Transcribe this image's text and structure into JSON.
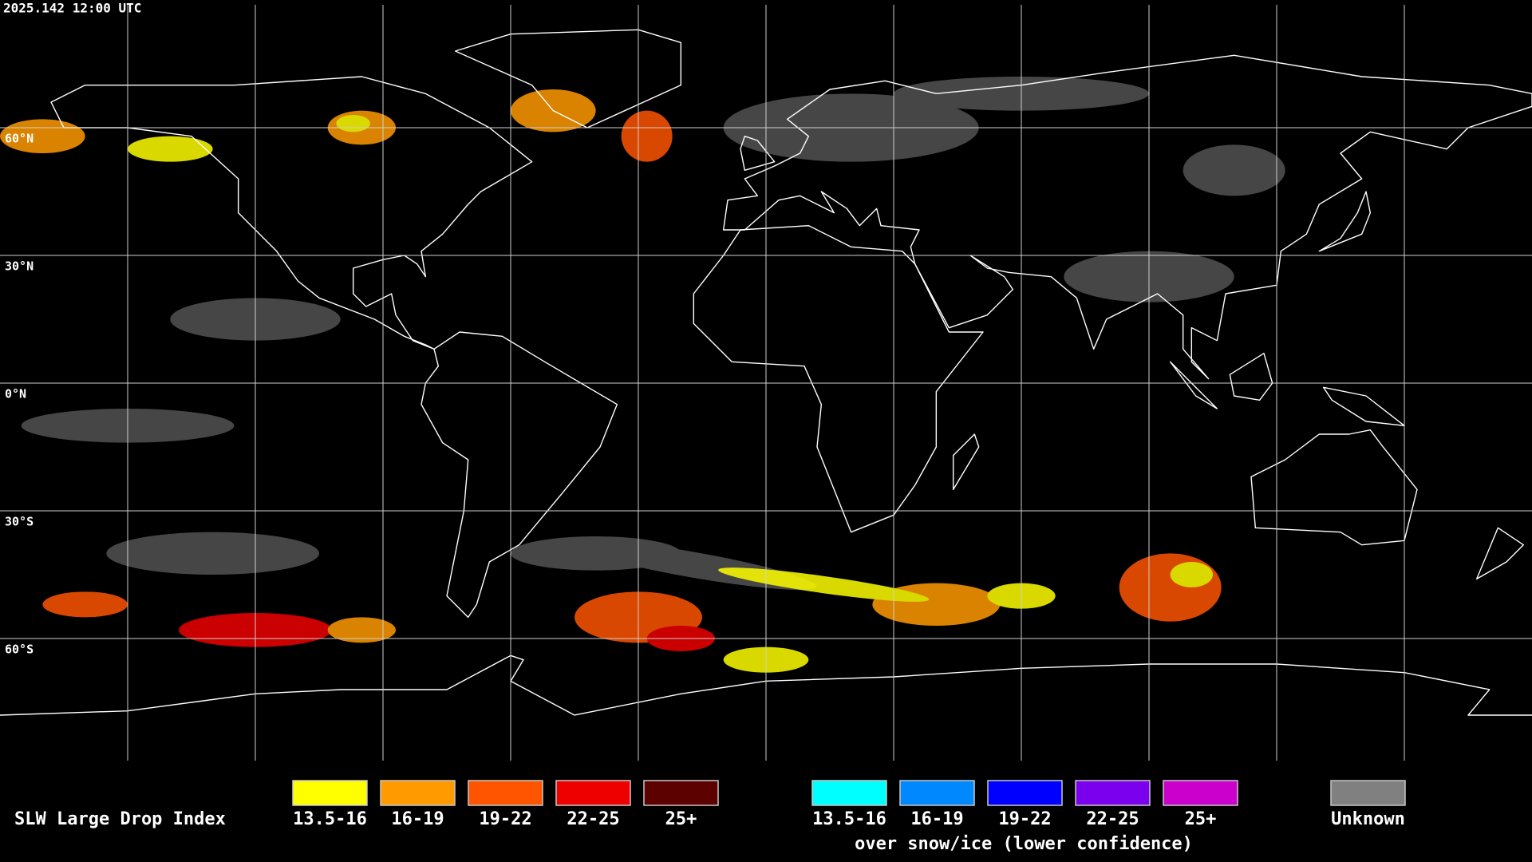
{
  "header": {
    "timestamp": "2025.142 12:00 UTC"
  },
  "map": {
    "lat_labels": [
      "60°N",
      "30°N",
      "0°N",
      "30°S",
      "60°S"
    ]
  },
  "legend": {
    "title": "SLW Large Drop Index",
    "groups": [
      {
        "items": [
          {
            "label": "13.5-16",
            "color": "#ffff00"
          },
          {
            "label": "16-19",
            "color": "#ff9a00"
          },
          {
            "label": "19-22",
            "color": "#ff5500"
          },
          {
            "label": "22-25",
            "color": "#ee0000"
          },
          {
            "label": "25+",
            "color": "#5c0000"
          }
        ]
      },
      {
        "items": [
          {
            "label": "13.5-16",
            "color": "#00ffff"
          },
          {
            "label": "16-19",
            "color": "#0088ff"
          },
          {
            "label": "19-22",
            "color": "#0000ff"
          },
          {
            "label": "22-25",
            "color": "#7a00ee"
          },
          {
            "label": "25+",
            "color": "#cc00cc"
          }
        ],
        "caption": "over snow/ice (lower confidence)"
      },
      {
        "items": [
          {
            "label": "Unknown",
            "color": "#808080"
          }
        ]
      }
    ]
  }
}
